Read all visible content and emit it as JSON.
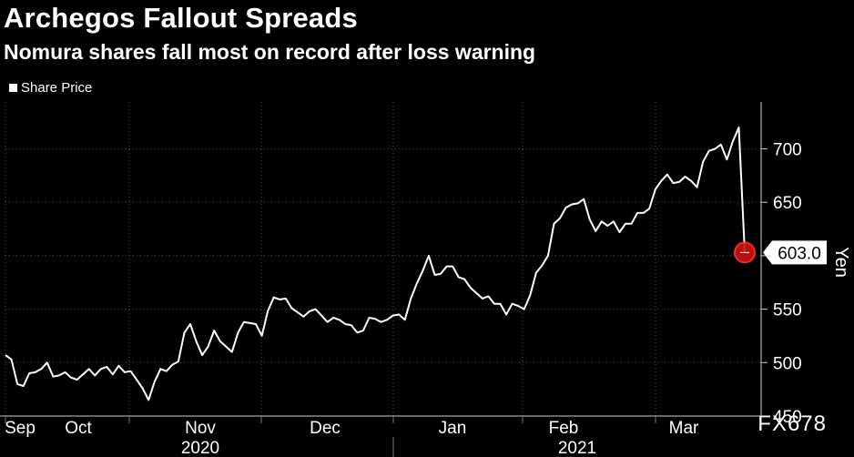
{
  "header": {
    "title": "Archegos Fallout Spreads",
    "subtitle": "Nomura shares fall most on record after loss warning"
  },
  "legend": {
    "label": "Share Price"
  },
  "source_tag": "FX678",
  "colors": {
    "background": "#000000",
    "line": "#ffffff",
    "grid": "#555555",
    "marker": "#cc1111"
  },
  "chart_data": {
    "type": "line",
    "title": "Archegos Fallout Spreads",
    "subtitle": "Nomura shares fall most on record after loss warning",
    "ylabel": "Yen",
    "ylim": [
      450,
      720
    ],
    "y_ticks": [
      450,
      500,
      550,
      600,
      650,
      700
    ],
    "x_tick_labels": [
      "Sep",
      "Oct",
      "Nov",
      "Dec",
      "Jan",
      "Feb",
      "Mar"
    ],
    "year_labels": [
      "2020",
      "2021"
    ],
    "last_value_label": "603.0",
    "grid": true,
    "series": [
      {
        "name": "Share Price",
        "values": [
          507,
          503,
          480,
          478,
          490,
          491,
          494,
          500,
          487,
          488,
          491,
          486,
          484,
          489,
          494,
          488,
          494,
          496,
          489,
          497,
          491,
          492,
          484,
          476,
          465,
          482,
          494,
          492,
          498,
          501,
          528,
          536,
          520,
          507,
          515,
          530,
          520,
          515,
          510,
          528,
          538,
          537,
          536,
          525,
          548,
          561,
          559,
          560,
          551,
          547,
          543,
          548,
          550,
          544,
          538,
          542,
          540,
          536,
          535,
          528,
          530,
          542,
          541,
          538,
          540,
          544,
          545,
          540,
          560,
          574,
          586,
          600,
          582,
          583,
          590,
          590,
          580,
          578,
          570,
          565,
          560,
          562,
          555,
          555,
          545,
          555,
          553,
          550,
          563,
          584,
          591,
          600,
          630,
          635,
          645,
          648,
          649,
          653,
          634,
          623,
          632,
          628,
          632,
          622,
          630,
          630,
          640,
          640,
          644,
          662,
          670,
          676,
          668,
          669,
          674,
          670,
          664,
          688,
          698,
          700,
          704,
          690,
          707,
          720,
          603
        ]
      }
    ]
  }
}
